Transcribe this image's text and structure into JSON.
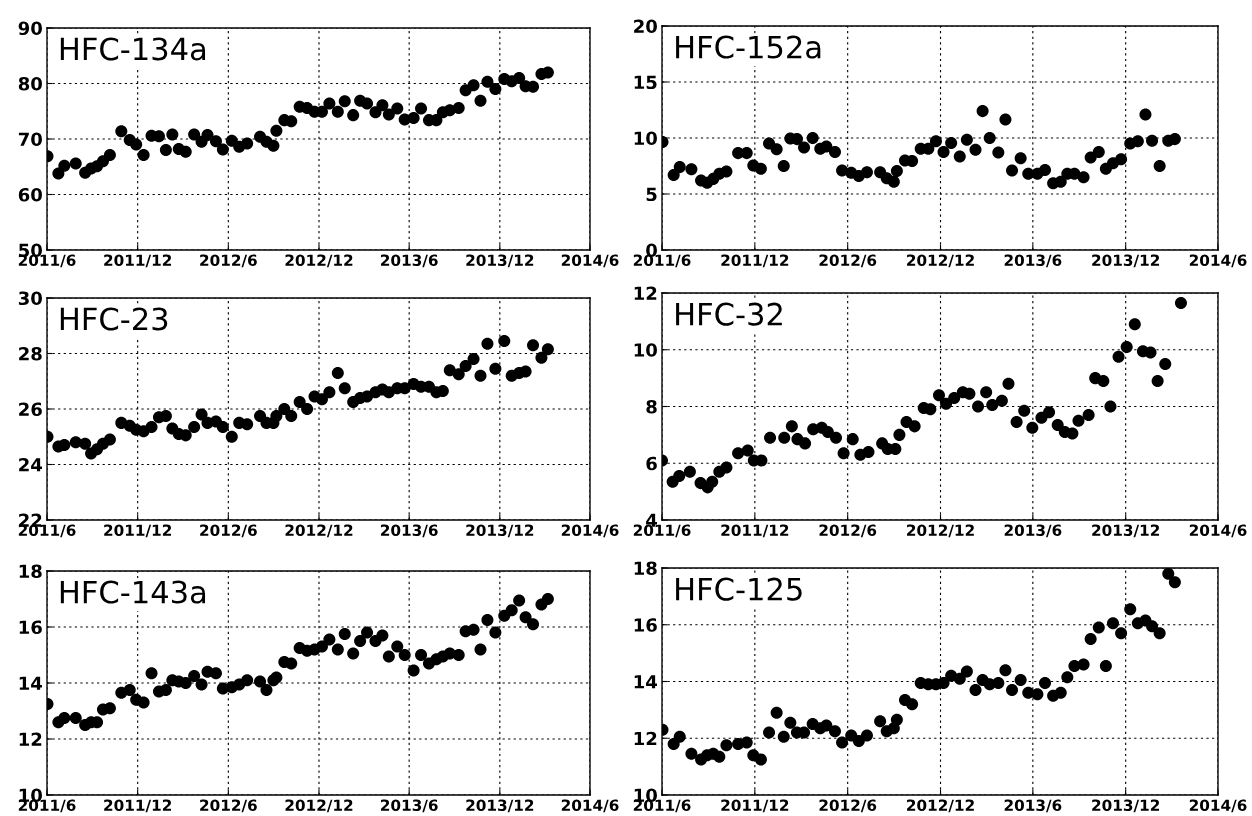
{
  "chart_data": [
    {
      "type": "scatter",
      "title": "HFC-134a",
      "color": "#000000",
      "marker": "circle",
      "grid": true,
      "x": [
        "2011-06-02",
        "2011-06-24",
        "2011-07-06",
        "2011-07-29",
        "2011-08-17",
        "2011-08-29",
        "2011-09-10",
        "2011-09-22",
        "2011-10-06",
        "2011-10-29",
        "2011-11-15",
        "2011-11-28",
        "2011-12-13",
        "2011-12-29",
        "2012-01-13",
        "2012-01-27",
        "2012-02-09",
        "2012-02-22",
        "2012-03-07",
        "2012-03-24",
        "2012-04-08",
        "2012-04-20",
        "2012-05-07",
        "2012-05-21",
        "2012-06-08",
        "2012-06-23",
        "2012-07-09",
        "2012-08-04",
        "2012-08-17",
        "2012-08-31",
        "2012-09-06",
        "2012-09-22",
        "2012-10-06",
        "2012-10-23",
        "2012-11-07",
        "2012-11-22",
        "2012-12-07",
        "2012-12-22",
        "2013-01-08",
        "2013-01-22",
        "2013-02-08",
        "2013-02-22",
        "2013-03-08",
        "2013-03-25",
        "2013-04-08",
        "2013-04-21",
        "2013-05-08",
        "2013-05-23",
        "2013-06-10",
        "2013-06-25",
        "2013-07-11",
        "2013-07-26",
        "2013-08-08",
        "2013-08-22",
        "2013-09-09",
        "2013-09-23",
        "2013-10-09",
        "2013-10-23",
        "2013-11-06",
        "2013-11-22",
        "2013-12-10",
        "2013-12-25",
        "2014-01-09",
        "2014-01-22",
        "2014-02-06",
        "2014-02-23",
        "2014-03-08"
      ],
      "values": [
        66.9,
        63.8,
        65.2,
        65.6,
        63.9,
        64.7,
        65.1,
        66.0,
        67.1,
        71.4,
        69.8,
        69.0,
        67.1,
        70.6,
        70.5,
        68.0,
        70.8,
        68.2,
        67.7,
        70.8,
        69.5,
        70.7,
        69.6,
        68.1,
        69.7,
        68.6,
        69.2,
        70.4,
        69.5,
        68.8,
        71.5,
        73.4,
        73.2,
        75.8,
        75.6,
        74.9,
        74.9,
        76.4,
        74.9,
        76.8,
        74.3,
        76.9,
        76.4,
        74.8,
        76.1,
        74.4,
        75.5,
        73.5,
        73.8,
        75.5,
        73.4,
        73.4,
        74.8,
        75.2,
        75.6,
        78.8,
        79.7,
        76.9,
        80.3,
        79.0,
        80.8,
        80.4,
        81.0,
        79.5,
        79.4,
        81.7,
        82.0
      ],
      "xlim": [
        "2011-06-01",
        "2014-06-01"
      ],
      "xticks": [
        {
          "value": "2011-06-01",
          "label": "2011/6"
        },
        {
          "value": "2011-12-01",
          "label": "2011/12"
        },
        {
          "value": "2012-06-01",
          "label": "2012/6"
        },
        {
          "value": "2012-12-01",
          "label": "2012/12"
        },
        {
          "value": "2013-06-01",
          "label": "2013/6"
        },
        {
          "value": "2013-12-01",
          "label": "2013/12"
        },
        {
          "value": "2014-06-01",
          "label": "2014/6"
        }
      ],
      "ylim": [
        50,
        90
      ],
      "yticks": [
        50,
        60,
        70,
        80,
        90
      ]
    },
    {
      "type": "scatter",
      "title": "HFC-152a",
      "color": "#000000",
      "marker": "circle",
      "grid": true,
      "x": [
        "2011-06-02",
        "2011-06-24",
        "2011-07-06",
        "2011-07-29",
        "2011-08-17",
        "2011-08-29",
        "2011-09-10",
        "2011-09-22",
        "2011-10-06",
        "2011-10-29",
        "2011-11-15",
        "2011-11-28",
        "2011-12-13",
        "2011-12-29",
        "2012-01-13",
        "2012-01-27",
        "2012-02-09",
        "2012-02-22",
        "2012-03-07",
        "2012-03-24",
        "2012-04-08",
        "2012-04-20",
        "2012-05-07",
        "2012-05-21",
        "2012-06-08",
        "2012-06-23",
        "2012-07-09",
        "2012-08-04",
        "2012-08-17",
        "2012-08-31",
        "2012-09-06",
        "2012-09-22",
        "2012-10-06",
        "2012-10-23",
        "2012-11-07",
        "2012-11-22",
        "2012-12-07",
        "2012-12-22",
        "2013-01-08",
        "2013-01-22",
        "2013-02-08",
        "2013-02-22",
        "2013-03-08",
        "2013-03-25",
        "2013-04-08",
        "2013-04-21",
        "2013-05-08",
        "2013-05-23",
        "2013-06-10",
        "2013-06-25",
        "2013-07-11",
        "2013-07-26",
        "2013-08-08",
        "2013-08-22",
        "2013-09-09",
        "2013-09-23",
        "2013-10-09",
        "2013-10-23",
        "2013-11-06",
        "2013-11-22",
        "2013-12-10",
        "2013-12-25",
        "2014-01-09",
        "2014-01-22",
        "2014-02-06",
        "2014-02-23",
        "2014-03-08"
      ],
      "values": [
        9.65,
        6.7,
        7.4,
        7.2,
        6.2,
        6.0,
        6.35,
        6.8,
        7.0,
        8.65,
        8.65,
        7.55,
        7.25,
        9.5,
        9.0,
        7.5,
        9.95,
        9.9,
        9.15,
        10.0,
        9.05,
        9.25,
        8.75,
        7.1,
        6.9,
        6.6,
        6.95,
        6.95,
        6.4,
        6.1,
        7.05,
        8.0,
        7.95,
        9.05,
        9.05,
        9.7,
        8.75,
        9.55,
        8.35,
        9.85,
        8.95,
        12.4,
        10.0,
        8.7,
        11.65,
        7.1,
        8.2,
        6.8,
        6.8,
        7.15,
        5.95,
        6.1,
        6.8,
        6.8,
        6.5,
        8.25,
        8.75,
        7.25,
        7.75,
        8.1,
        9.5,
        9.7,
        12.1,
        9.75,
        7.5,
        9.75,
        9.9
      ],
      "xlim": [
        "2011-06-01",
        "2014-06-01"
      ],
      "xticks": [
        {
          "value": "2011-06-01",
          "label": "2011/6"
        },
        {
          "value": "2011-12-01",
          "label": "2011/12"
        },
        {
          "value": "2012-06-01",
          "label": "2012/6"
        },
        {
          "value": "2012-12-01",
          "label": "2012/12"
        },
        {
          "value": "2013-06-01",
          "label": "2013/6"
        },
        {
          "value": "2013-12-01",
          "label": "2013/12"
        },
        {
          "value": "2014-06-01",
          "label": "2014/6"
        }
      ],
      "ylim": [
        0,
        20
      ],
      "yticks": [
        0,
        5,
        10,
        15,
        20
      ]
    },
    {
      "type": "scatter",
      "title": "HFC-23",
      "color": "#000000",
      "marker": "circle",
      "grid": true,
      "x": [
        "2011-06-02",
        "2011-06-24",
        "2011-07-06",
        "2011-07-29",
        "2011-08-17",
        "2011-08-29",
        "2011-09-10",
        "2011-09-22",
        "2011-10-06",
        "2011-10-29",
        "2011-11-15",
        "2011-11-28",
        "2011-12-13",
        "2011-12-29",
        "2012-01-13",
        "2012-01-27",
        "2012-02-09",
        "2012-02-22",
        "2012-03-07",
        "2012-03-24",
        "2012-04-08",
        "2012-04-20",
        "2012-05-07",
        "2012-05-21",
        "2012-06-08",
        "2012-06-23",
        "2012-07-09",
        "2012-08-04",
        "2012-08-17",
        "2012-08-31",
        "2012-09-06",
        "2012-09-22",
        "2012-10-06",
        "2012-10-23",
        "2012-11-07",
        "2012-11-22",
        "2012-12-07",
        "2012-12-22",
        "2013-01-08",
        "2013-01-22",
        "2013-02-08",
        "2013-02-22",
        "2013-03-08",
        "2013-03-25",
        "2013-04-08",
        "2013-04-21",
        "2013-05-08",
        "2013-05-23",
        "2013-06-10",
        "2013-06-25",
        "2013-07-11",
        "2013-07-26",
        "2013-08-08",
        "2013-08-22",
        "2013-09-09",
        "2013-09-23",
        "2013-10-09",
        "2013-10-23",
        "2013-11-06",
        "2013-11-22",
        "2013-12-10",
        "2013-12-25",
        "2014-01-09",
        "2014-01-22",
        "2014-02-06",
        "2014-02-23",
        "2014-03-08"
      ],
      "values": [
        25.0,
        24.65,
        24.7,
        24.8,
        24.75,
        24.4,
        24.55,
        24.75,
        24.9,
        25.5,
        25.4,
        25.25,
        25.2,
        25.35,
        25.7,
        25.75,
        25.3,
        25.1,
        25.05,
        25.35,
        25.8,
        25.5,
        25.55,
        25.35,
        25.0,
        25.5,
        25.45,
        25.75,
        25.5,
        25.5,
        25.75,
        26.0,
        25.75,
        26.25,
        26.0,
        26.45,
        26.35,
        26.6,
        27.3,
        26.75,
        26.25,
        26.4,
        26.45,
        26.6,
        26.7,
        26.6,
        26.75,
        26.75,
        26.9,
        26.8,
        26.8,
        26.6,
        26.65,
        27.4,
        27.25,
        27.55,
        27.8,
        27.2,
        28.35,
        27.45,
        28.45,
        27.2,
        27.3,
        27.35,
        28.3,
        27.85,
        28.15
      ],
      "xlim": [
        "2011-06-01",
        "2014-06-01"
      ],
      "xticks": [
        {
          "value": "2011-06-01",
          "label": "2011/6"
        },
        {
          "value": "2011-12-01",
          "label": "2011/12"
        },
        {
          "value": "2012-06-01",
          "label": "2012/6"
        },
        {
          "value": "2012-12-01",
          "label": "2012/12"
        },
        {
          "value": "2013-06-01",
          "label": "2013/6"
        },
        {
          "value": "2013-12-01",
          "label": "2013/12"
        },
        {
          "value": "2014-06-01",
          "label": "2014/6"
        }
      ],
      "ylim": [
        22,
        30
      ],
      "yticks": [
        22,
        24,
        26,
        28,
        30
      ]
    },
    {
      "type": "scatter",
      "title": "HFC-32",
      "color": "#000000",
      "marker": "circle",
      "grid": true,
      "x": [
        "2011-06-01",
        "2011-06-22",
        "2011-07-05",
        "2011-07-26",
        "2011-08-16",
        "2011-08-30",
        "2011-09-08",
        "2011-09-22",
        "2011-10-06",
        "2011-10-29",
        "2011-11-17",
        "2011-11-29",
        "2011-12-14",
        "2011-12-31",
        "2012-01-28",
        "2012-02-12",
        "2012-02-23",
        "2012-03-09",
        "2012-03-25",
        "2012-04-11",
        "2012-04-23",
        "2012-05-09",
        "2012-05-24",
        "2012-06-11",
        "2012-06-26",
        "2012-07-12",
        "2012-08-08",
        "2012-08-19",
        "2012-09-03",
        "2012-09-11",
        "2012-09-25",
        "2012-10-11",
        "2012-10-29",
        "2012-11-11",
        "2012-11-28",
        "2012-12-12",
        "2012-12-28",
        "2013-01-14",
        "2013-01-27",
        "2013-02-13",
        "2013-03-01",
        "2013-03-13",
        "2013-04-01",
        "2013-04-14",
        "2013-04-30",
        "2013-05-15",
        "2013-05-31",
        "2013-06-18",
        "2013-07-03",
        "2013-07-20",
        "2013-08-03",
        "2013-08-18",
        "2013-08-30",
        "2013-09-19",
        "2013-10-02",
        "2013-10-18",
        "2013-11-01",
        "2013-11-17",
        "2013-12-03",
        "2013-12-19",
        "2014-01-04",
        "2014-01-19",
        "2014-02-02",
        "2014-02-17",
        "2014-03-20"
      ],
      "values": [
        6.1,
        5.35,
        5.55,
        5.7,
        5.3,
        5.15,
        5.35,
        5.7,
        5.85,
        6.35,
        6.45,
        6.1,
        6.1,
        6.9,
        6.9,
        7.3,
        6.85,
        6.7,
        7.2,
        7.25,
        7.1,
        6.9,
        6.35,
        6.85,
        6.3,
        6.4,
        6.7,
        6.5,
        6.5,
        7.0,
        7.45,
        7.3,
        7.95,
        7.9,
        8.4,
        8.1,
        8.3,
        8.5,
        8.45,
        8.0,
        8.5,
        8.05,
        8.2,
        8.8,
        7.45,
        7.85,
        7.25,
        7.6,
        7.8,
        7.35,
        7.1,
        7.05,
        7.5,
        7.7,
        9.0,
        8.9,
        8.0,
        9.75,
        10.1,
        10.9,
        9.95,
        9.9,
        8.9,
        9.5,
        11.65
      ],
      "xlim": [
        "2011-06-01",
        "2014-06-01"
      ],
      "xticks": [
        {
          "value": "2011-06-01",
          "label": "2011/6"
        },
        {
          "value": "2011-12-01",
          "label": "2011/12"
        },
        {
          "value": "2012-06-01",
          "label": "2012/6"
        },
        {
          "value": "2012-12-01",
          "label": "2012/12"
        },
        {
          "value": "2013-06-01",
          "label": "2013/6"
        },
        {
          "value": "2013-12-01",
          "label": "2013/12"
        },
        {
          "value": "2014-06-01",
          "label": "2014/6"
        }
      ],
      "ylim": [
        4,
        12
      ],
      "yticks": [
        4,
        6,
        8,
        10,
        12
      ]
    },
    {
      "type": "scatter",
      "title": "HFC-143a",
      "color": "#000000",
      "marker": "circle",
      "grid": true,
      "x": [
        "2011-06-02",
        "2011-06-24",
        "2011-07-06",
        "2011-07-29",
        "2011-08-17",
        "2011-08-29",
        "2011-09-10",
        "2011-09-22",
        "2011-10-06",
        "2011-10-29",
        "2011-11-15",
        "2011-11-28",
        "2011-12-13",
        "2011-12-29",
        "2012-01-13",
        "2012-01-27",
        "2012-02-09",
        "2012-02-22",
        "2012-03-07",
        "2012-03-24",
        "2012-04-08",
        "2012-04-20",
        "2012-05-07",
        "2012-05-21",
        "2012-06-08",
        "2012-06-23",
        "2012-07-09",
        "2012-08-04",
        "2012-08-17",
        "2012-08-31",
        "2012-09-06",
        "2012-09-22",
        "2012-10-06",
        "2012-10-23",
        "2012-11-07",
        "2012-11-22",
        "2012-12-07",
        "2012-12-22",
        "2013-01-08",
        "2013-01-22",
        "2013-02-08",
        "2013-02-22",
        "2013-03-08",
        "2013-03-25",
        "2013-04-08",
        "2013-04-21",
        "2013-05-08",
        "2013-05-23",
        "2013-06-10",
        "2013-06-25",
        "2013-07-11",
        "2013-07-26",
        "2013-08-08",
        "2013-08-22",
        "2013-09-09",
        "2013-09-23",
        "2013-10-09",
        "2013-10-23",
        "2013-11-06",
        "2013-11-22",
        "2013-12-10",
        "2013-12-25",
        "2014-01-09",
        "2014-01-22",
        "2014-02-06",
        "2014-02-23",
        "2014-03-08"
      ],
      "values": [
        13.25,
        12.6,
        12.75,
        12.75,
        12.5,
        12.6,
        12.6,
        13.05,
        13.1,
        13.65,
        13.75,
        13.4,
        13.3,
        14.35,
        13.7,
        13.75,
        14.1,
        14.05,
        14.0,
        14.25,
        13.95,
        14.4,
        14.35,
        13.8,
        13.85,
        13.95,
        14.1,
        14.05,
        13.75,
        14.1,
        14.2,
        14.75,
        14.7,
        15.25,
        15.15,
        15.2,
        15.3,
        15.55,
        15.2,
        15.75,
        15.05,
        15.5,
        15.8,
        15.5,
        15.7,
        14.95,
        15.3,
        15.0,
        14.45,
        15.0,
        14.7,
        14.85,
        14.95,
        15.05,
        15.0,
        15.85,
        15.9,
        15.2,
        16.25,
        15.8,
        16.4,
        16.6,
        16.95,
        16.35,
        16.1,
        16.8,
        17.0
      ],
      "xlim": [
        "2011-06-01",
        "2014-06-01"
      ],
      "xticks": [
        {
          "value": "2011-06-01",
          "label": "2011/6"
        },
        {
          "value": "2011-12-01",
          "label": "2011/12"
        },
        {
          "value": "2012-06-01",
          "label": "2012/6"
        },
        {
          "value": "2012-12-01",
          "label": "2012/12"
        },
        {
          "value": "2013-06-01",
          "label": "2013/6"
        },
        {
          "value": "2013-12-01",
          "label": "2013/12"
        },
        {
          "value": "2014-06-01",
          "label": "2014/6"
        }
      ],
      "ylim": [
        10,
        18
      ],
      "yticks": [
        10,
        12,
        14,
        16,
        18
      ]
    },
    {
      "type": "scatter",
      "title": "HFC-125",
      "color": "#000000",
      "marker": "circle",
      "grid": true,
      "x": [
        "2011-06-02",
        "2011-06-24",
        "2011-07-06",
        "2011-07-29",
        "2011-08-17",
        "2011-08-29",
        "2011-09-10",
        "2011-09-22",
        "2011-10-06",
        "2011-10-29",
        "2011-11-15",
        "2011-11-28",
        "2011-12-13",
        "2011-12-29",
        "2012-01-13",
        "2012-01-27",
        "2012-02-09",
        "2012-02-22",
        "2012-03-07",
        "2012-03-24",
        "2012-04-08",
        "2012-04-20",
        "2012-05-07",
        "2012-05-21",
        "2012-06-08",
        "2012-06-23",
        "2012-07-09",
        "2012-08-04",
        "2012-08-17",
        "2012-08-31",
        "2012-09-06",
        "2012-09-22",
        "2012-10-06",
        "2012-10-23",
        "2012-11-07",
        "2012-11-22",
        "2012-12-07",
        "2012-12-22",
        "2013-01-08",
        "2013-01-22",
        "2013-02-08",
        "2013-02-22",
        "2013-03-08",
        "2013-03-25",
        "2013-04-08",
        "2013-04-21",
        "2013-05-08",
        "2013-05-23",
        "2013-06-10",
        "2013-06-25",
        "2013-07-11",
        "2013-07-26",
        "2013-08-08",
        "2013-08-22",
        "2013-09-09",
        "2013-09-23",
        "2013-10-09",
        "2013-10-23",
        "2013-11-06",
        "2013-11-22",
        "2013-12-10",
        "2013-12-25",
        "2014-01-09",
        "2014-01-22",
        "2014-02-06",
        "2014-02-23",
        "2014-03-08"
      ],
      "values": [
        12.3,
        11.8,
        12.05,
        11.45,
        11.25,
        11.4,
        11.45,
        11.35,
        11.75,
        11.8,
        11.85,
        11.4,
        11.25,
        12.2,
        12.9,
        12.05,
        12.55,
        12.2,
        12.2,
        12.5,
        12.35,
        12.45,
        12.25,
        11.85,
        12.1,
        11.9,
        12.1,
        12.6,
        12.25,
        12.35,
        12.65,
        13.35,
        13.2,
        13.95,
        13.9,
        13.9,
        13.95,
        14.2,
        14.1,
        14.35,
        13.7,
        14.05,
        13.9,
        13.95,
        14.4,
        13.7,
        14.05,
        13.6,
        13.55,
        13.95,
        13.5,
        13.6,
        14.15,
        14.55,
        14.6,
        15.5,
        15.9,
        14.55,
        16.05,
        15.7,
        16.55,
        16.05,
        16.15,
        15.95,
        15.7,
        17.8,
        17.5
      ],
      "xlim": [
        "2011-06-01",
        "2014-06-01"
      ],
      "xticks": [
        {
          "value": "2011-06-01",
          "label": "2011/6"
        },
        {
          "value": "2011-12-01",
          "label": "2011/12"
        },
        {
          "value": "2012-06-01",
          "label": "2012/6"
        },
        {
          "value": "2012-12-01",
          "label": "2012/12"
        },
        {
          "value": "2013-06-01",
          "label": "2013/6"
        },
        {
          "value": "2013-12-01",
          "label": "2013/12"
        },
        {
          "value": "2014-06-01",
          "label": "2014/6"
        }
      ],
      "ylim": [
        10,
        18
      ],
      "yticks": [
        10,
        12,
        14,
        16,
        18
      ]
    }
  ]
}
